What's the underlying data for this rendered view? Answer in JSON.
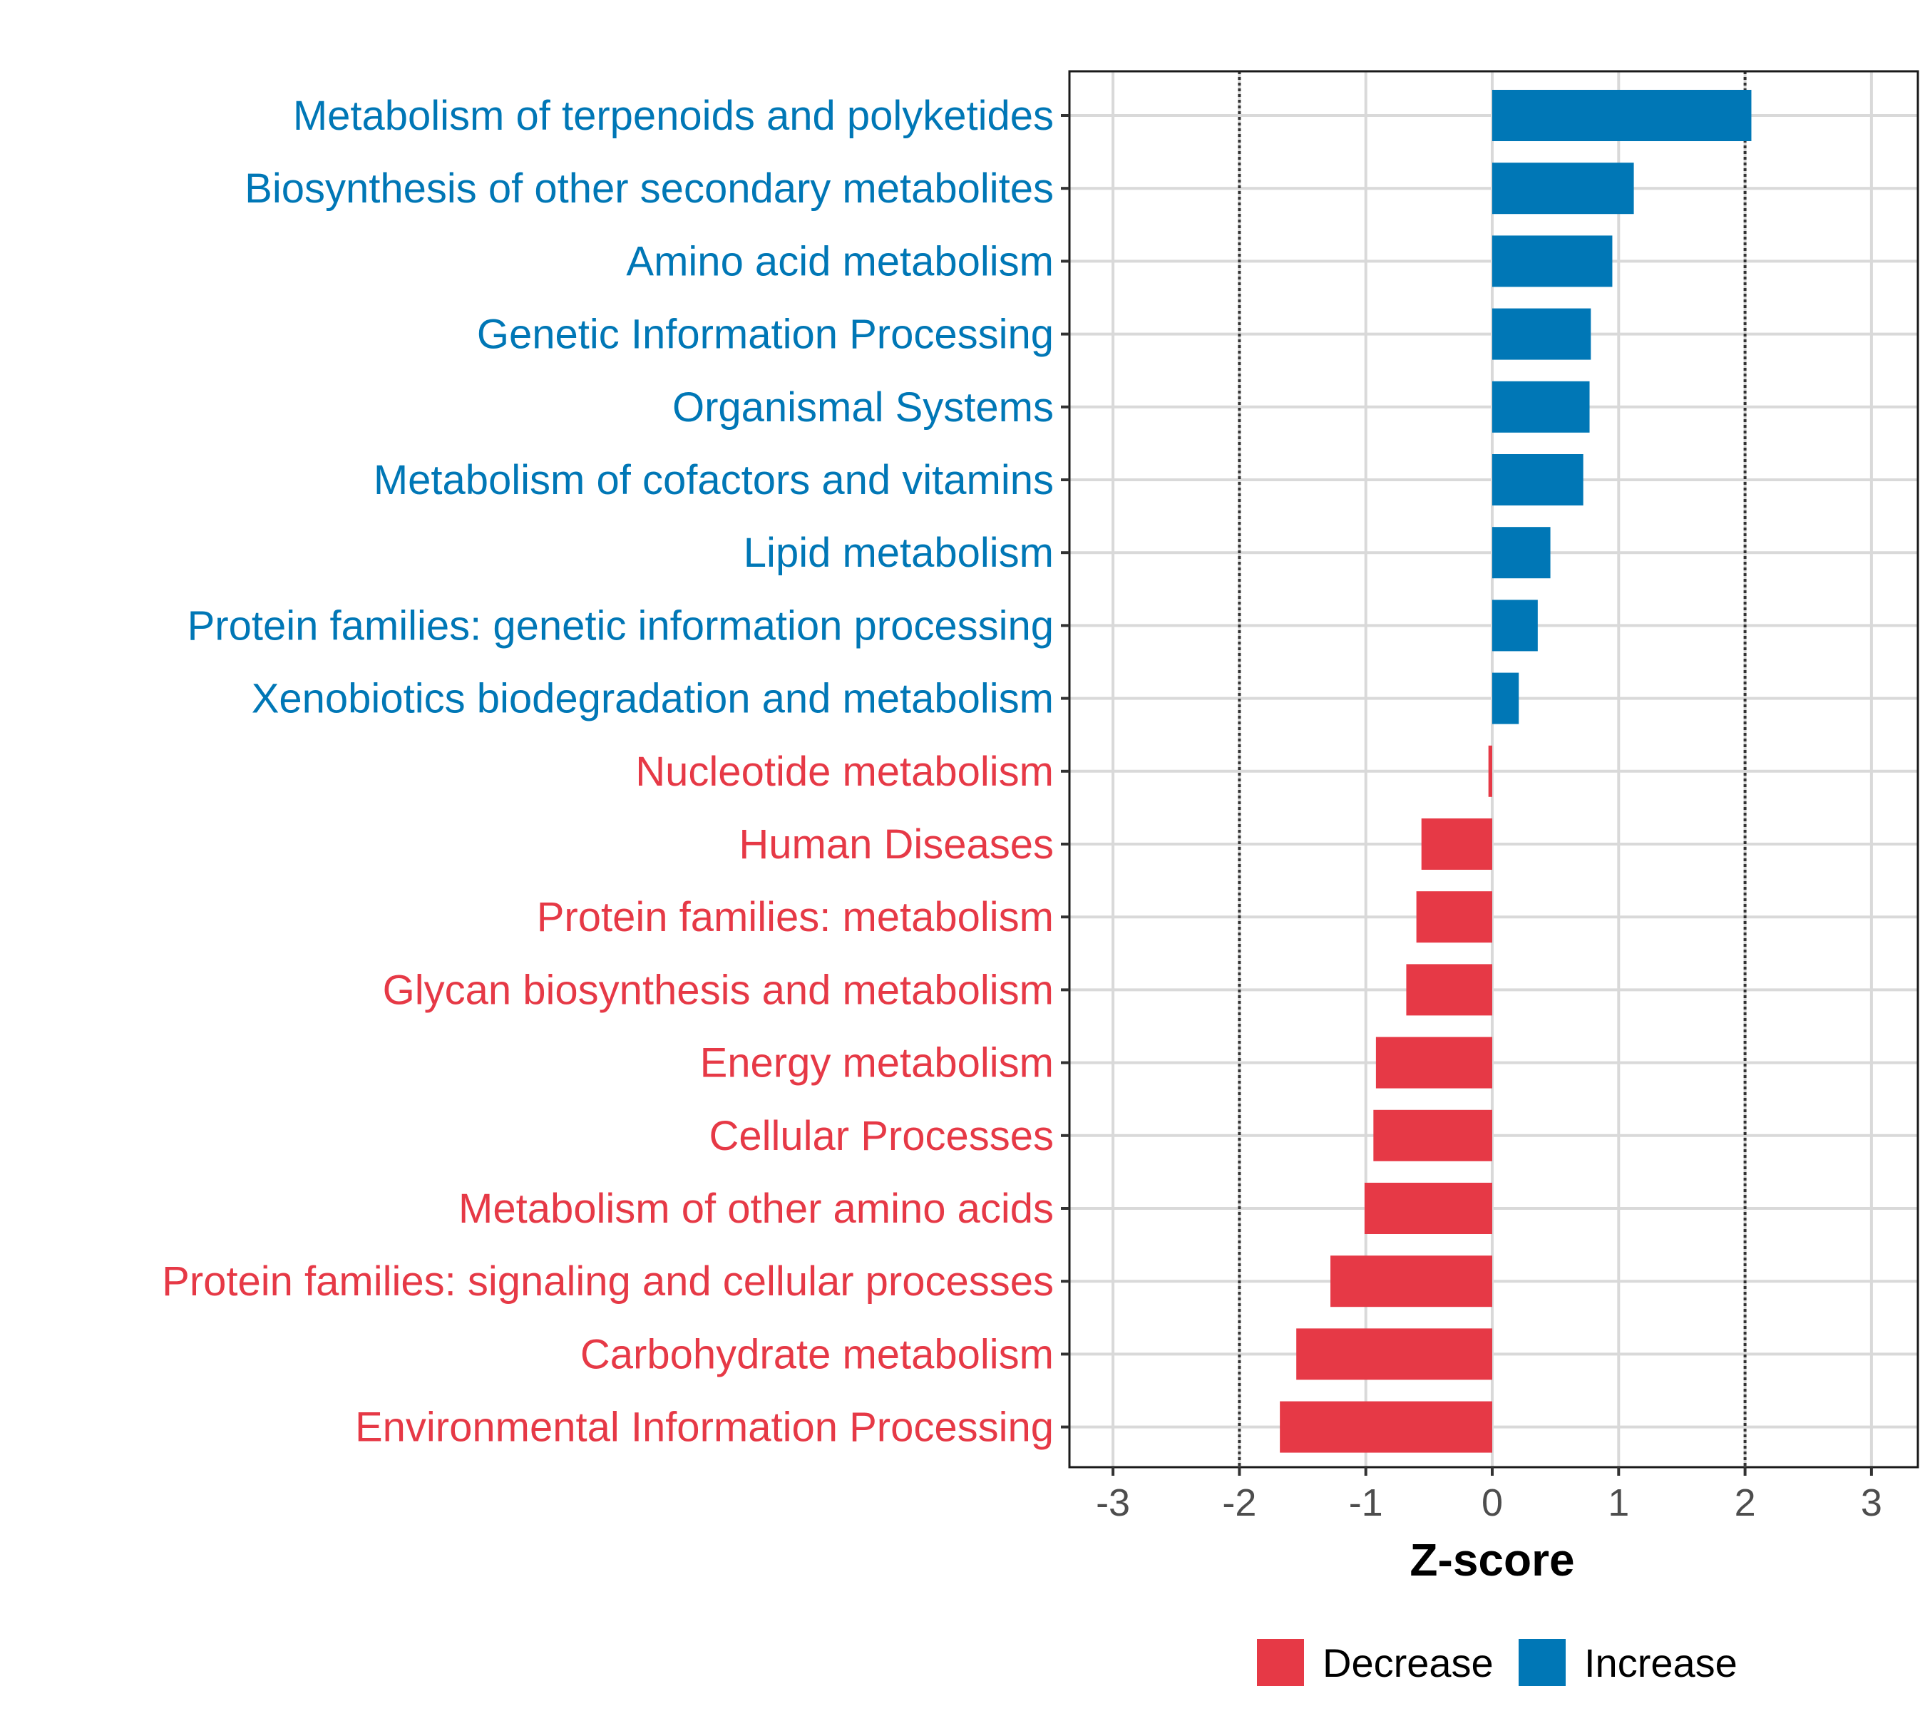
{
  "chart_data": {
    "type": "bar",
    "orientation": "horizontal",
    "xlabel": "Z-score",
    "ylabel": "",
    "xlim": [
      -3.35,
      3.35
    ],
    "xticks": [
      "-3",
      "-2",
      "-1",
      "0",
      "1",
      "2",
      "3"
    ],
    "reference_lines": [
      -2,
      2
    ],
    "categories": [
      "Metabolism of terpenoids and polyketides",
      "Biosynthesis of other secondary metabolites",
      "Amino acid metabolism",
      "Genetic Information Processing",
      "Organismal Systems",
      "Metabolism of cofactors and vitamins",
      "Lipid metabolism",
      "Protein families: genetic information processing",
      "Xenobiotics biodegradation and metabolism",
      "Nucleotide metabolism",
      "Human Diseases",
      "Protein families: metabolism",
      "Glycan biosynthesis and metabolism",
      "Energy metabolism",
      "Cellular Processes",
      "Metabolism of other amino acids",
      "Protein families: signaling and cellular processes",
      "Carbohydrate metabolism",
      "Environmental Information Processing"
    ],
    "values": [
      2.05,
      1.12,
      0.95,
      0.78,
      0.77,
      0.72,
      0.46,
      0.36,
      0.21,
      -0.03,
      -0.56,
      -0.6,
      -0.68,
      -0.92,
      -0.94,
      -1.01,
      -1.28,
      -1.55,
      -1.68
    ],
    "groups": [
      "Increase",
      "Increase",
      "Increase",
      "Increase",
      "Increase",
      "Increase",
      "Increase",
      "Increase",
      "Increase",
      "Decrease",
      "Decrease",
      "Decrease",
      "Decrease",
      "Decrease",
      "Decrease",
      "Decrease",
      "Decrease",
      "Decrease",
      "Decrease"
    ],
    "legend": [
      {
        "name": "Decrease",
        "color": "#E63946"
      },
      {
        "name": "Increase",
        "color": "#0077B6"
      }
    ],
    "legend_position": "bottom"
  }
}
